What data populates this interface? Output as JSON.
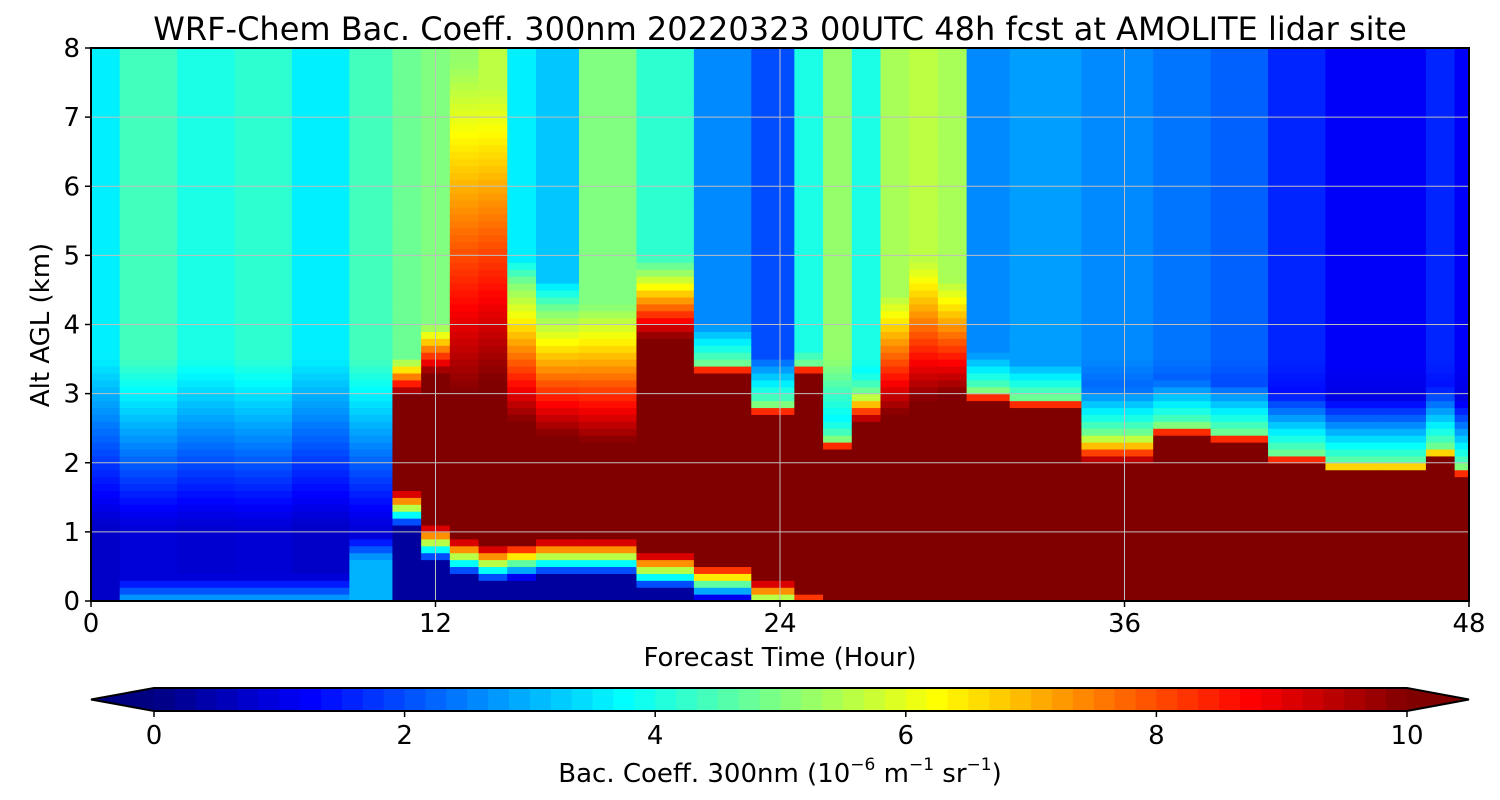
{
  "chart_data": {
    "type": "heatmap",
    "title": "WRF-Chem Bac. Coeff. 300nm  20220323 00UTC 48h fcst at AMOLITE lidar site",
    "xlabel": "Forecast Time (Hour)",
    "ylabel": "Alt AGL (km)",
    "xlim": [
      0,
      48
    ],
    "ylim": [
      0,
      8
    ],
    "xticks": [
      "0",
      "12",
      "24",
      "36",
      "48"
    ],
    "yticks": [
      "0",
      "1",
      "2",
      "3",
      "4",
      "5",
      "6",
      "7",
      "8"
    ],
    "grid": true,
    "colormap": "jet",
    "colorbar": {
      "label_main": "Bac. Coeff. 300nm  (10",
      "label_exp1": "−6",
      "label_mid": " m",
      "label_exp2": "−1",
      "label_tail": " sr",
      "label_exp3": "−1",
      "label_end": ")",
      "range": [
        0,
        10
      ],
      "ticks": [
        "0",
        "2",
        "4",
        "6",
        "8",
        "10"
      ],
      "extend": "both",
      "placement": "bottom"
    },
    "x_hours": [
      0,
      2,
      4,
      6,
      8,
      10,
      11,
      12,
      13,
      14,
      15,
      16,
      18,
      20,
      22,
      24,
      25,
      26,
      27,
      28,
      29,
      30,
      31,
      33,
      36,
      38,
      40,
      42,
      44,
      46,
      47,
      48
    ],
    "profiles": [
      {
        "aerosol_top_km": null,
        "core_top_km": null,
        "core_bottom_km": null,
        "upper_level": 3.6
      },
      {
        "aerosol_top_km": 0.0,
        "core_top_km": null,
        "core_bottom_km": null,
        "upper_level": 4.4
      },
      {
        "aerosol_top_km": 0.0,
        "core_top_km": null,
        "core_bottom_km": null,
        "upper_level": 4.0
      },
      {
        "aerosol_top_km": 0.0,
        "core_top_km": null,
        "core_bottom_km": null,
        "upper_level": 4.2
      },
      {
        "aerosol_top_km": 0.0,
        "core_top_km": null,
        "core_bottom_km": null,
        "upper_level": 3.6
      },
      {
        "aerosol_top_km": 0.6,
        "core_top_km": null,
        "core_bottom_km": null,
        "upper_level": 4.4
      },
      {
        "aerosol_top_km": 3.5,
        "core_top_km": 3.0,
        "core_bottom_km": 1.6,
        "upper_level": 4.8
      },
      {
        "aerosol_top_km": 4.0,
        "core_top_km": 3.3,
        "core_bottom_km": 1.1,
        "upper_level": 5.0
      },
      {
        "aerosol_top_km": 8.0,
        "core_top_km": 3.0,
        "core_bottom_km": 0.9,
        "upper_level": 5.2
      },
      {
        "aerosol_top_km": 8.0,
        "core_top_km": 3.2,
        "core_bottom_km": 0.8,
        "upper_level": 5.6
      },
      {
        "aerosol_top_km": 4.6,
        "core_top_km": 2.6,
        "core_bottom_km": 0.85,
        "upper_level": 3.6
      },
      {
        "aerosol_top_km": 4.2,
        "core_top_km": 2.4,
        "core_bottom_km": 0.9,
        "upper_level": 3.2
      },
      {
        "aerosol_top_km": 4.3,
        "core_top_km": 2.3,
        "core_bottom_km": 0.9,
        "upper_level": 5.0
      },
      {
        "aerosol_top_km": 4.8,
        "core_top_km": 3.8,
        "core_bottom_km": 0.7,
        "upper_level": 4.2
      },
      {
        "aerosol_top_km": 3.4,
        "core_top_km": 3.3,
        "core_bottom_km": 0.55,
        "upper_level": 2.6
      },
      {
        "aerosol_top_km": 2.8,
        "core_top_km": 2.7,
        "core_bottom_km": 0.3,
        "upper_level": 2.0
      },
      {
        "aerosol_top_km": 3.4,
        "core_top_km": 3.3,
        "core_bottom_km": 0.15,
        "upper_level": 4.0
      },
      {
        "aerosol_top_km": 2.3,
        "core_top_km": 2.2,
        "core_bottom_km": 0.05,
        "upper_level": 5.2
      },
      {
        "aerosol_top_km": 3.0,
        "core_top_km": 2.6,
        "core_bottom_km": 0.0,
        "upper_level": 4.0
      },
      {
        "aerosol_top_km": 4.6,
        "core_top_km": 2.7,
        "core_bottom_km": 0.0,
        "upper_level": 5.4
      },
      {
        "aerosol_top_km": 5.2,
        "core_top_km": 2.9,
        "core_bottom_km": 0.0,
        "upper_level": 5.6
      },
      {
        "aerosol_top_km": 4.8,
        "core_top_km": 3.0,
        "core_bottom_km": 0.0,
        "upper_level": 5.4
      },
      {
        "aerosol_top_km": 3.0,
        "core_top_km": 2.9,
        "core_bottom_km": 0.0,
        "upper_level": 2.6
      },
      {
        "aerosol_top_km": 2.9,
        "core_top_km": 2.8,
        "core_bottom_km": 0.0,
        "upper_level": 2.8
      },
      {
        "aerosol_top_km": 2.4,
        "core_top_km": 2.0,
        "core_bottom_km": 0.0,
        "upper_level": 2.6
      },
      {
        "aerosol_top_km": 2.5,
        "core_top_km": 2.4,
        "core_bottom_km": 0.0,
        "upper_level": 2.4
      },
      {
        "aerosol_top_km": 2.4,
        "core_top_km": 2.3,
        "core_bottom_km": 0.0,
        "upper_level": 2.2
      },
      {
        "aerosol_top_km": 2.1,
        "core_top_km": 2.0,
        "core_bottom_km": 0.0,
        "upper_level": 1.6
      },
      {
        "aerosol_top_km": 1.95,
        "core_top_km": 1.85,
        "core_bottom_km": 0.0,
        "upper_level": 1.2
      },
      {
        "aerosol_top_km": 1.95,
        "core_top_km": 1.85,
        "core_bottom_km": 0.0,
        "upper_level": 1.2
      },
      {
        "aerosol_top_km": 2.2,
        "core_top_km": 2.05,
        "core_bottom_km": 0.0,
        "upper_level": 1.6
      },
      {
        "aerosol_top_km": 1.9,
        "core_top_km": 1.8,
        "core_bottom_km": 0.0,
        "upper_level": 1.2
      }
    ]
  }
}
